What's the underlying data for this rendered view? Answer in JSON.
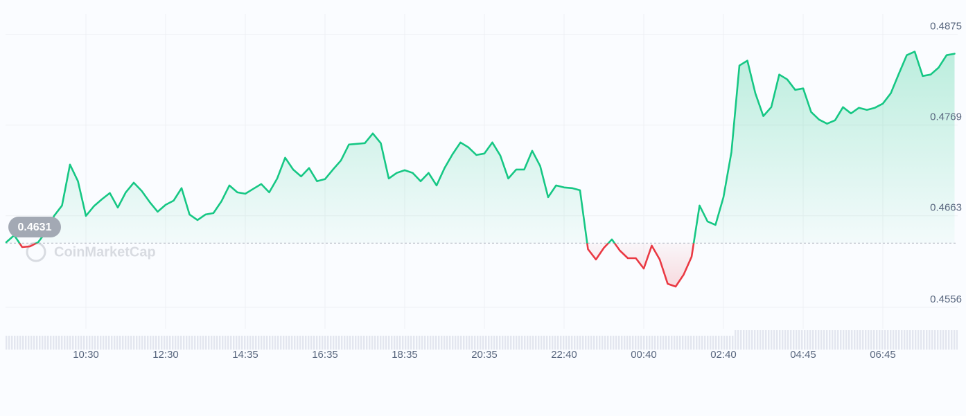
{
  "chart_data": {
    "type": "line",
    "color_up": "#16c784",
    "color_down": "#ea3943",
    "baseline": 0.4631,
    "ylim": [
      0.4535,
      0.4899
    ],
    "yticks": [
      0.4556,
      0.4663,
      0.4769,
      0.4875
    ],
    "grid": true,
    "watermark": "CoinMarketCap",
    "categories": [
      null,
      null,
      null,
      null,
      null,
      null,
      null,
      null,
      null,
      null,
      "10:30",
      null,
      null,
      null,
      null,
      null,
      null,
      null,
      null,
      null,
      "12:30",
      null,
      null,
      null,
      null,
      null,
      null,
      null,
      null,
      null,
      "14:35",
      null,
      null,
      null,
      null,
      null,
      null,
      null,
      null,
      null,
      "16:35",
      null,
      null,
      null,
      null,
      null,
      null,
      null,
      null,
      null,
      "18:35",
      null,
      null,
      null,
      null,
      null,
      null,
      null,
      null,
      null,
      "20:35",
      null,
      null,
      null,
      null,
      null,
      null,
      null,
      null,
      null,
      "22:40",
      null,
      null,
      null,
      null,
      null,
      null,
      null,
      null,
      null,
      "00:40",
      null,
      null,
      null,
      null,
      null,
      null,
      null,
      null,
      null,
      "02:40",
      null,
      null,
      null,
      null,
      null,
      null,
      null,
      null,
      null,
      "04:45",
      null,
      null,
      null,
      null,
      null,
      null,
      null,
      null,
      null,
      "06:45",
      null,
      null,
      null,
      null,
      null,
      null,
      null,
      null,
      null
    ],
    "values": [
      0.46321,
      0.46402,
      0.46264,
      0.46273,
      0.46321,
      0.46443,
      0.46629,
      0.4675,
      0.47228,
      0.47034,
      0.46629,
      0.46742,
      0.46823,
      0.46896,
      0.46726,
      0.46904,
      0.47017,
      0.4692,
      0.46791,
      0.46677,
      0.46758,
      0.46807,
      0.46953,
      0.46645,
      0.4658,
      0.46645,
      0.46661,
      0.46799,
      0.46985,
      0.46904,
      0.46888,
      0.46945,
      0.47001,
      0.46904,
      0.47066,
      0.47309,
      0.47171,
      0.4709,
      0.47188,
      0.47034,
      0.47058,
      0.47171,
      0.47277,
      0.47463,
      0.47471,
      0.47479,
      0.47592,
      0.47479,
      0.47066,
      0.47131,
      0.47163,
      0.47131,
      0.47034,
      0.47131,
      0.46985,
      0.47188,
      0.47349,
      0.47487,
      0.4743,
      0.47341,
      0.47358,
      0.47487,
      0.47333,
      0.47066,
      0.47171,
      0.47171,
      0.4739,
      0.47212,
      0.46847,
      0.46985,
      0.46961,
      0.46953,
      0.46928,
      0.4624,
      0.46119,
      0.46256,
      0.46354,
      0.46224,
      0.46135,
      0.46135,
      0.46013,
      0.46281,
      0.46119,
      0.45835,
      0.45803,
      0.45941,
      0.46151,
      0.4675,
      0.46564,
      0.46524,
      0.46847,
      0.47374,
      0.48386,
      0.48443,
      0.48062,
      0.47795,
      0.479,
      0.48281,
      0.48224,
      0.48102,
      0.48119,
      0.47843,
      0.47754,
      0.47706,
      0.47746,
      0.479,
      0.47827,
      0.47892,
      0.47868,
      0.47892,
      0.47941,
      0.48062,
      0.48289,
      0.48507,
      0.48548,
      0.48264,
      0.48281,
      0.48362,
      0.48507,
      0.48524
    ]
  }
}
